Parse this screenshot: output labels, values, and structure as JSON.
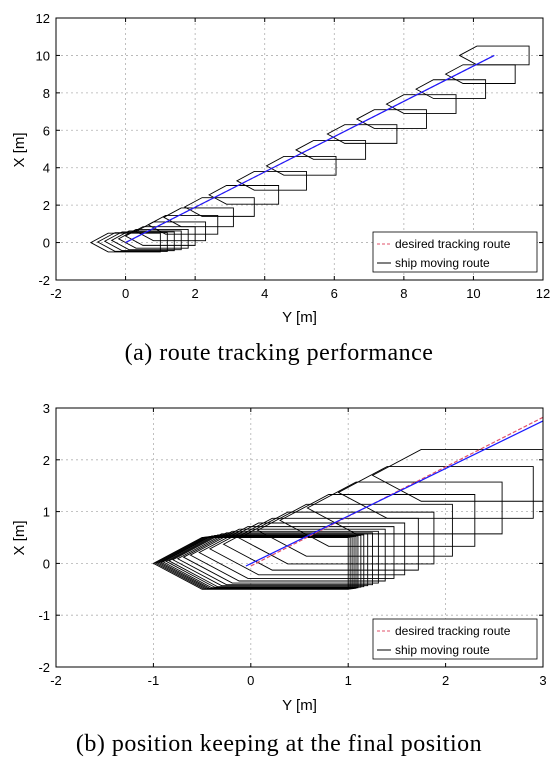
{
  "chart_data": [
    {
      "type": "line",
      "caption": "(a)  route  tracking  performance",
      "xlabel": "Y [m]",
      "ylabel": "X [m]",
      "xlim": [
        -2,
        12
      ],
      "ylim": [
        -2,
        12
      ],
      "xticks": [
        "-2",
        "0",
        "2",
        "4",
        "6",
        "8",
        "10",
        "12"
      ],
      "yticks": [
        "-2",
        "0",
        "2",
        "4",
        "6",
        "8",
        "10",
        "12"
      ],
      "grid": true,
      "legend_position": "bottom-right",
      "series": [
        {
          "name": "desired tracking route",
          "color": "#e0506a",
          "style": "dashed",
          "x": [
            0,
            10.6
          ],
          "y": [
            0,
            10
          ]
        },
        {
          "name": "ship moving route",
          "color": "#1a1aff",
          "style": "solid",
          "x": [
            0,
            10.6
          ],
          "y": [
            0,
            10
          ]
        }
      ],
      "ship_outlines": {
        "color": "#000000",
        "centers": [
          [
            0,
            0
          ],
          [
            0.2,
            0.03
          ],
          [
            0.4,
            0.07
          ],
          [
            0.6,
            0.12
          ],
          [
            0.8,
            0.2
          ],
          [
            1.0,
            0.35
          ],
          [
            1.3,
            0.6
          ],
          [
            1.65,
            0.95
          ],
          [
            2.1,
            1.35
          ],
          [
            2.7,
            1.9
          ],
          [
            3.4,
            2.55
          ],
          [
            4.2,
            3.3
          ],
          [
            5.05,
            4.1
          ],
          [
            5.9,
            4.95
          ],
          [
            6.8,
            5.8
          ],
          [
            7.65,
            6.6
          ],
          [
            8.5,
            7.4
          ],
          [
            9.35,
            8.2
          ],
          [
            10.2,
            9.0
          ],
          [
            10.6,
            10.0
          ]
        ]
      }
    },
    {
      "type": "line",
      "caption": "(b)  position  keeping  at  the  final  position",
      "xlabel": "Y [m]",
      "ylabel": "X [m]",
      "xlim": [
        -2,
        3
      ],
      "ylim": [
        -2,
        3
      ],
      "xticks": [
        "-2",
        "-1",
        "0",
        "1",
        "2",
        "3"
      ],
      "yticks": [
        "-2",
        "-1",
        "0",
        "1",
        "2",
        "3"
      ],
      "grid": true,
      "legend_position": "bottom-right",
      "series": [
        {
          "name": "desired tracking route",
          "color": "#e0506a",
          "style": "dashed",
          "x": [
            0,
            3
          ],
          "y": [
            -0.05,
            2.82
          ]
        },
        {
          "name": "ship moving route",
          "color": "#1a1aff",
          "style": "solid",
          "x": [
            -0.05,
            3
          ],
          "y": [
            -0.05,
            2.75
          ]
        }
      ],
      "ship_outlines": {
        "color": "#000000",
        "centers": [
          [
            0,
            0
          ],
          [
            0.02,
            0.005
          ],
          [
            0.04,
            0.01
          ],
          [
            0.06,
            0.015
          ],
          [
            0.08,
            0.02
          ],
          [
            0.1,
            0.03
          ],
          [
            0.13,
            0.04
          ],
          [
            0.16,
            0.05
          ],
          [
            0.2,
            0.07
          ],
          [
            0.25,
            0.09
          ],
          [
            0.31,
            0.12
          ],
          [
            0.38,
            0.16
          ],
          [
            0.47,
            0.21
          ],
          [
            0.58,
            0.28
          ],
          [
            0.72,
            0.37
          ],
          [
            0.88,
            0.49
          ],
          [
            1.07,
            0.64
          ],
          [
            1.3,
            0.83
          ],
          [
            1.58,
            1.07
          ],
          [
            1.9,
            1.37
          ],
          [
            2.25,
            1.7
          ]
        ]
      }
    }
  ]
}
